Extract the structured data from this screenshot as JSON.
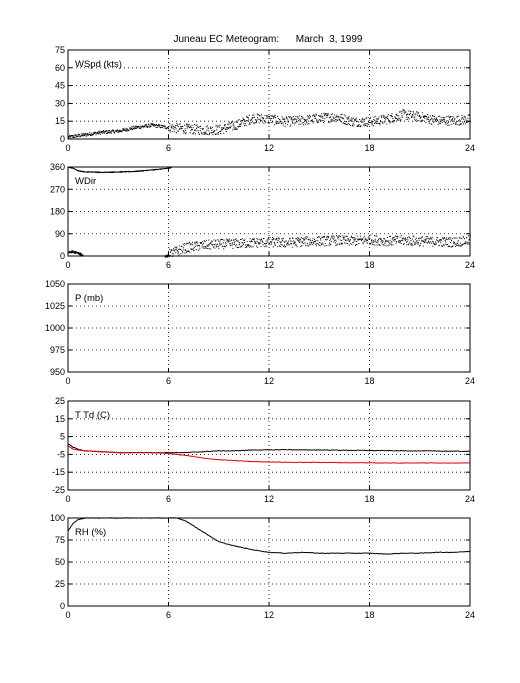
{
  "title": "Juneau EC Meteogram:      March  3, 1999",
  "colors": {
    "black": "#000000",
    "red": "#e00000"
  },
  "chart_data": [
    {
      "type": "line",
      "label": "WSpd (kts)",
      "x_ticks": [
        "0",
        "6",
        "12",
        "18",
        "24"
      ],
      "xlim": [
        0,
        24
      ],
      "ylim": [
        0,
        75
      ],
      "y_ticks": [
        "0",
        "15",
        "30",
        "45",
        "60",
        "75"
      ],
      "grid": true,
      "series": [
        {
          "color": "#000000",
          "style": "scatter",
          "x": [
            0,
            1,
            2,
            3,
            4,
            5,
            6,
            7,
            8,
            9,
            10,
            11,
            12,
            13,
            14,
            15,
            16,
            17,
            18,
            19,
            20,
            21,
            22,
            23,
            24
          ],
          "y": [
            2,
            4,
            6,
            7,
            10,
            12,
            10,
            9,
            8,
            8,
            12,
            18,
            17,
            15,
            16,
            18,
            19,
            15,
            15,
            17,
            21,
            19,
            16,
            16,
            17
          ]
        }
      ]
    },
    {
      "type": "line",
      "label": "WDir",
      "x_ticks": [
        "0",
        "6",
        "12",
        "18",
        "24"
      ],
      "xlim": [
        0,
        24
      ],
      "ylim": [
        0,
        360
      ],
      "y_ticks": [
        "0",
        "90",
        "180",
        "270",
        "360"
      ],
      "grid": true,
      "series": [
        {
          "color": "#000000",
          "style": "line",
          "x": [
            0,
            0.3,
            0.6,
            1.0,
            1.5,
            2,
            3,
            4,
            5,
            6,
            6.2
          ],
          "y": [
            360,
            355,
            345,
            340,
            340,
            338,
            340,
            342,
            348,
            355,
            358
          ]
        },
        {
          "color": "#000000",
          "style": "line",
          "x": [
            0,
            0.3,
            0.6,
            0.9
          ],
          "y": [
            15,
            17,
            12,
            2
          ]
        },
        {
          "color": "#000000",
          "style": "line",
          "x": [
            5.8,
            6.1
          ],
          "y": [
            0,
            0
          ]
        },
        {
          "color": "#000000",
          "style": "scatter",
          "x": [
            6,
            7,
            8,
            9,
            10,
            11,
            12,
            13,
            14,
            15,
            16,
            17,
            18,
            19,
            20,
            21,
            22,
            23,
            24
          ],
          "y": [
            10,
            35,
            45,
            50,
            52,
            55,
            58,
            55,
            60,
            62,
            65,
            62,
            68,
            62,
            65,
            62,
            60,
            58,
            65
          ]
        }
      ]
    },
    {
      "type": "line",
      "label": "P (mb)",
      "x_ticks": [
        "0",
        "6",
        "12",
        "18",
        "24"
      ],
      "xlim": [
        0,
        24
      ],
      "ylim": [
        950,
        1050
      ],
      "y_ticks": [
        "950",
        "975",
        "1000",
        "1025",
        "1050"
      ],
      "grid": true,
      "series": []
    },
    {
      "type": "line",
      "label": "T Td (C)",
      "x_ticks": [
        "0",
        "6",
        "12",
        "18",
        "24"
      ],
      "xlim": [
        0,
        24
      ],
      "ylim": [
        -25,
        25
      ],
      "y_ticks": [
        "-25",
        "-15",
        "-5",
        "5",
        "15",
        "25"
      ],
      "grid": true,
      "series": [
        {
          "color": "#000000",
          "style": "line",
          "x": [
            0,
            0.3,
            0.6,
            1,
            2,
            3,
            4,
            5,
            6,
            7,
            8,
            9,
            10,
            11,
            12,
            13,
            14,
            15,
            16,
            17,
            18,
            19,
            20,
            21,
            22,
            23,
            24
          ],
          "y": [
            1,
            -1,
            -2,
            -3,
            -3.5,
            -4,
            -4,
            -4,
            -4,
            -4,
            -3.5,
            -3,
            -3,
            -2.5,
            -2.5,
            -2.3,
            -2.5,
            -2.5,
            -2.6,
            -2.7,
            -2.8,
            -2.9,
            -3,
            -3,
            -3.1,
            -3.2,
            -3.3
          ]
        },
        {
          "color": "#e00000",
          "style": "line",
          "x": [
            0,
            0.3,
            0.6,
            1,
            2,
            3,
            4,
            5,
            6,
            7,
            8,
            9,
            10,
            11,
            12,
            13,
            14,
            15,
            16,
            17,
            18,
            19,
            20,
            21,
            22,
            23,
            24
          ],
          "y": [
            0,
            -2,
            -2.5,
            -3,
            -3.5,
            -4,
            -4,
            -4,
            -4.5,
            -5.5,
            -7,
            -8,
            -8.5,
            -9,
            -9.2,
            -9.4,
            -9.5,
            -9.5,
            -9.6,
            -9.7,
            -9.7,
            -9.8,
            -9.8,
            -9.8,
            -9.8,
            -9.8,
            -9.8
          ]
        }
      ]
    },
    {
      "type": "line",
      "label": "RH (%)",
      "x_ticks": [
        "0",
        "6",
        "12",
        "18",
        "24"
      ],
      "xlim": [
        0,
        24
      ],
      "ylim": [
        0,
        100
      ],
      "y_ticks": [
        "0",
        "25",
        "50",
        "75",
        "100"
      ],
      "grid": true,
      "series": [
        {
          "color": "#000000",
          "style": "line",
          "x": [
            0,
            0.3,
            0.6,
            1,
            1.5,
            2,
            3,
            4,
            5,
            6,
            6.5,
            7,
            8,
            9,
            10,
            11,
            12,
            13,
            14,
            15,
            16,
            17,
            18,
            19,
            20,
            21,
            22,
            23,
            24
          ],
          "y": [
            85,
            94,
            98,
            100,
            100,
            100,
            100,
            100,
            100,
            100,
            100,
            97,
            85,
            73,
            68,
            64,
            61,
            60,
            61,
            60,
            60,
            60,
            60,
            59,
            60,
            60,
            61,
            61,
            62
          ]
        }
      ]
    }
  ]
}
